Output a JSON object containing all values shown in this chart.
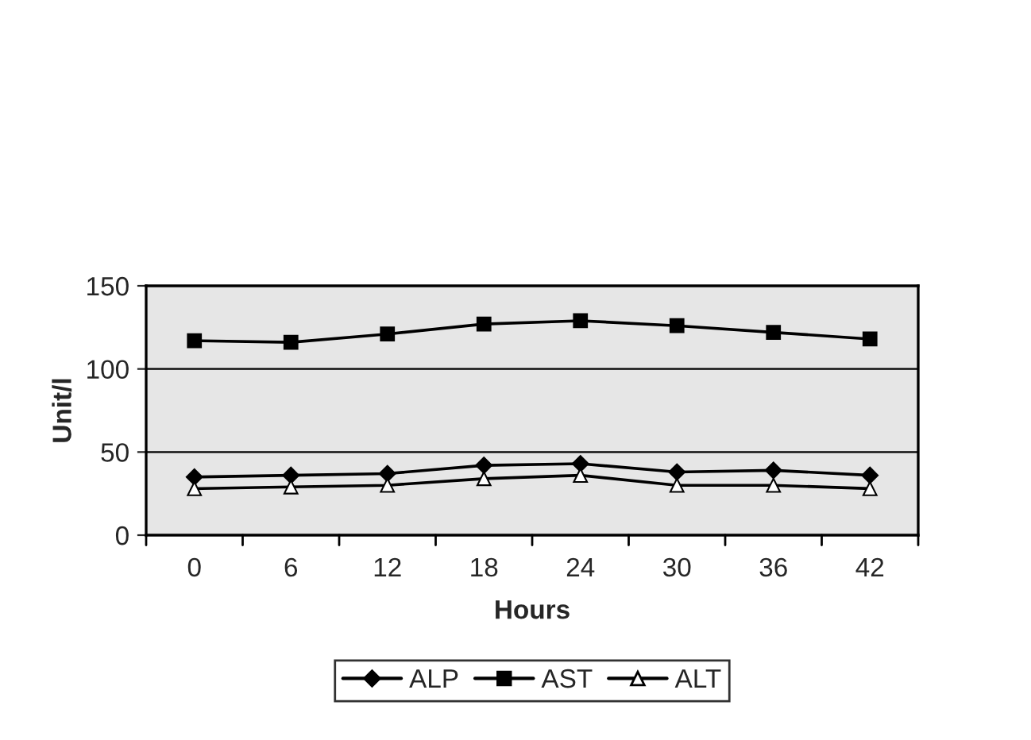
{
  "chart_data": {
    "type": "line",
    "xlabel": "Hours",
    "ylabel": "Unit/l",
    "categories": [
      "0",
      "6",
      "12",
      "18",
      "24",
      "30",
      "36",
      "42"
    ],
    "series": [
      {
        "name": "ALP",
        "color": "#000000",
        "marker": "diamond",
        "values": [
          35,
          36,
          37,
          42,
          43,
          38,
          39,
          36
        ]
      },
      {
        "name": "AST",
        "color": "#000000",
        "marker": "square",
        "values": [
          117,
          116,
          121,
          127,
          129,
          126,
          122,
          118
        ]
      },
      {
        "name": "ALT",
        "color": "#000000",
        "marker": "triangle",
        "values": [
          28,
          29,
          30,
          34,
          36,
          30,
          30,
          28
        ]
      }
    ],
    "ylim": [
      0,
      150
    ],
    "yticks": [
      0,
      50,
      100,
      150
    ],
    "grid": "y",
    "legend": "bottom",
    "line_style": "solid"
  }
}
